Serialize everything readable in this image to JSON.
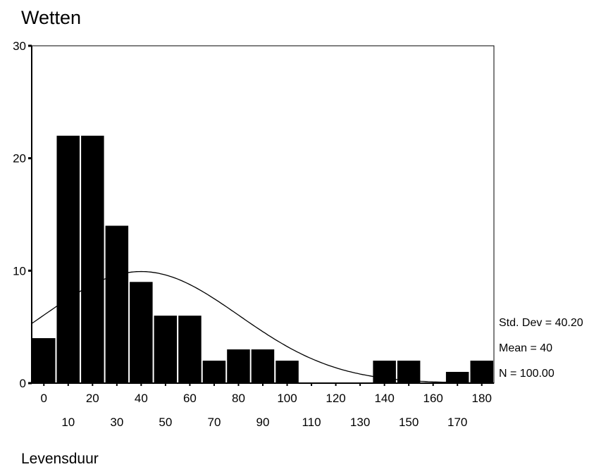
{
  "chart_data": {
    "type": "bar",
    "title": "Wetten",
    "xlabel": "Levensduur",
    "ylabel": "",
    "ylim": [
      0,
      30
    ],
    "y_ticks": [
      0,
      10,
      20,
      30
    ],
    "x_ticks_upper": [
      "0",
      "20",
      "40",
      "60",
      "80",
      "100",
      "120",
      "140",
      "160",
      "180"
    ],
    "x_ticks_lower": [
      "10",
      "30",
      "50",
      "70",
      "90",
      "110",
      "130",
      "150",
      "170"
    ],
    "categories": [
      "0",
      "10",
      "20",
      "30",
      "40",
      "50",
      "60",
      "70",
      "80",
      "90",
      "100",
      "110",
      "120",
      "130",
      "140",
      "150",
      "160",
      "170",
      "180"
    ],
    "values": [
      4,
      22,
      22,
      14,
      9,
      6,
      6,
      2,
      3,
      3,
      2,
      0,
      0,
      0,
      2,
      2,
      0,
      1,
      2
    ],
    "normal_curve": {
      "mean": 40,
      "std_dev": 40.2,
      "n": 100,
      "bin_width": 10
    },
    "stats": [
      "Std. Dev = 40.20",
      "Mean = 40",
      "N = 100.00"
    ],
    "colors": {
      "bar": "#000000",
      "background": "#ffffff"
    },
    "grid": false
  }
}
